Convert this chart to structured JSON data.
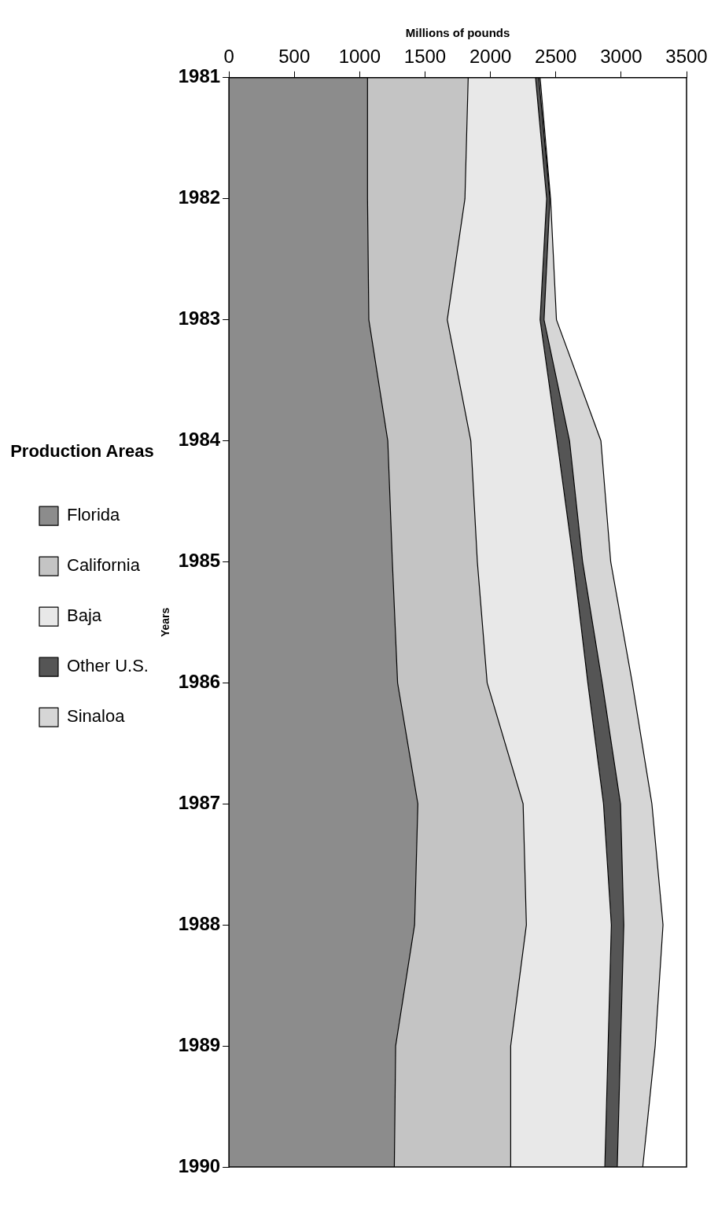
{
  "chart_data": {
    "type": "area",
    "orientation": "horizontal",
    "xlabel": "Millions of pounds",
    "ylabel": "Years",
    "legend_title": "Production Areas",
    "categories": [
      "1981",
      "1982",
      "1983",
      "1984",
      "1985",
      "1986",
      "1987",
      "1988",
      "1989",
      "1990"
    ],
    "stacked": true,
    "xlim": [
      0,
      3500
    ],
    "xticks": [
      0,
      500,
      1000,
      1500,
      2000,
      2500,
      3000,
      3500
    ],
    "grid": false,
    "legend": "left",
    "marker": "none",
    "series": [
      {
        "name": "Florida",
        "color": "#8c8c8c",
        "values": [
          1060,
          1060,
          1070,
          1215,
          1250,
          1290,
          1445,
          1420,
          1275,
          1265
        ]
      },
      {
        "name": "California",
        "color": "#c4c4c4",
        "values": [
          770,
          745,
          600,
          635,
          650,
          685,
          805,
          855,
          880,
          890
        ]
      },
      {
        "name": "Baja",
        "color": "#e8e8e8",
        "values": [
          515,
          625,
          710,
          660,
          735,
          770,
          615,
          650,
          745,
          720
        ]
      },
      {
        "name": "Other U.S.",
        "color": "#555555",
        "values": [
          25,
          25,
          30,
          95,
          70,
          110,
          130,
          95,
          95,
          95
        ]
      },
      {
        "name": "Sinaloa",
        "color": "#d6d6d6",
        "values": [
          10,
          5,
          95,
          240,
          215,
          230,
          240,
          300,
          265,
          195
        ]
      }
    ]
  }
}
